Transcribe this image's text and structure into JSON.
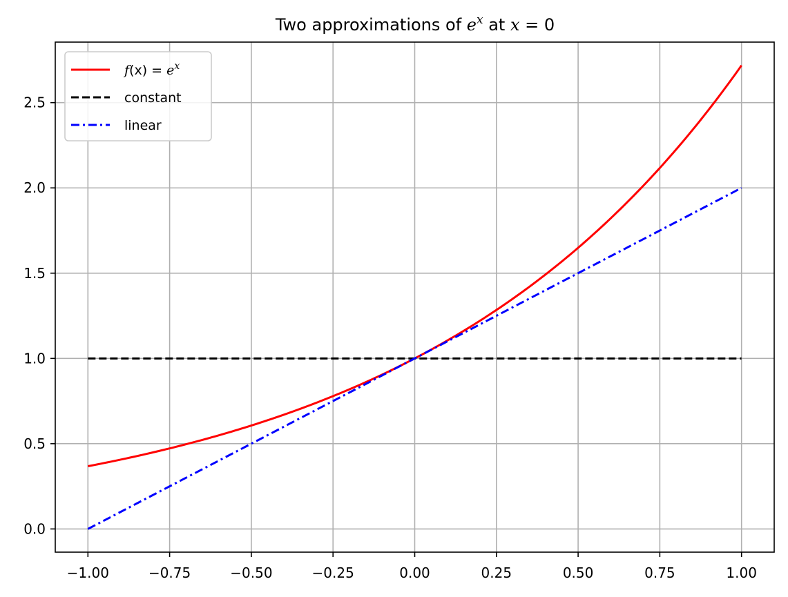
{
  "chart_data": {
    "type": "line",
    "title_parts": {
      "prefix": "Two approximations of ",
      "base": "e",
      "exponent": "x",
      "middle": " at ",
      "variable": "x",
      "equals": " = 0"
    },
    "xlabel": "",
    "ylabel": "",
    "xlim": [
      -1.1,
      1.1
    ],
    "ylim": [
      -0.136,
      2.855
    ],
    "grid": true,
    "legend_position": "top-left",
    "x_ticks": [
      -1.0,
      -0.75,
      -0.5,
      -0.25,
      0.0,
      0.25,
      0.5,
      0.75,
      1.0
    ],
    "x_tick_labels": [
      "−1.00",
      "−0.75",
      "−0.50",
      "−0.25",
      "0.00",
      "0.25",
      "0.50",
      "0.75",
      "1.00"
    ],
    "y_ticks": [
      0.0,
      0.5,
      1.0,
      1.5,
      2.0,
      2.5
    ],
    "y_tick_labels": [
      "0.0",
      "0.5",
      "1.0",
      "1.5",
      "2.0",
      "2.5"
    ],
    "series": [
      {
        "legend_label": "f(x) = e^x",
        "legend_parts": {
          "f": "f",
          "arg": "(x) = ",
          "base": "e",
          "exponent": "x"
        },
        "color": "#ff0000",
        "style": "solid",
        "x": [
          -1.0,
          -0.9,
          -0.8,
          -0.7,
          -0.6,
          -0.5,
          -0.4,
          -0.3,
          -0.2,
          -0.1,
          0.0,
          0.1,
          0.2,
          0.3,
          0.4,
          0.5,
          0.6,
          0.7,
          0.8,
          0.9,
          1.0
        ],
        "y": [
          0.368,
          0.407,
          0.449,
          0.497,
          0.549,
          0.607,
          0.67,
          0.741,
          0.819,
          0.905,
          1.0,
          1.105,
          1.221,
          1.35,
          1.492,
          1.649,
          1.822,
          2.014,
          2.226,
          2.46,
          2.718
        ]
      },
      {
        "legend_label": "constant",
        "color": "#000000",
        "style": "dashed",
        "x": [
          -1.0,
          1.0
        ],
        "y": [
          1.0,
          1.0
        ]
      },
      {
        "legend_label": "linear",
        "color": "#0000ff",
        "style": "dashdot",
        "x": [
          -1.0,
          1.0
        ],
        "y": [
          0.0,
          2.0
        ]
      }
    ]
  }
}
